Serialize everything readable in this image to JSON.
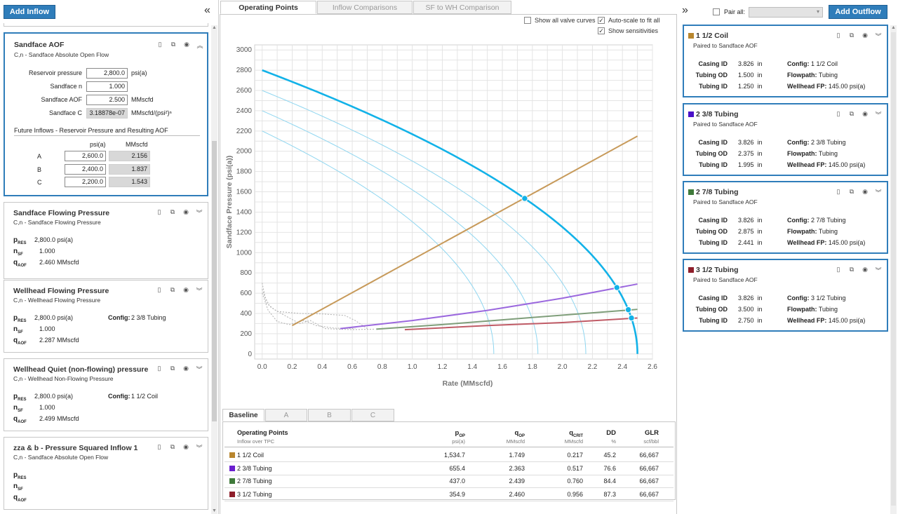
{
  "left": {
    "add_inflow": "Add Inflow",
    "collapse": "«",
    "cards": [
      {
        "title": "Sandface AOF",
        "subtitle": "C,n - Sandface Absolute Open Flow",
        "fields": [
          {
            "label": "Reservoir pressure",
            "value": "2,800.0",
            "unit": "psi(a)"
          },
          {
            "label": "Sandface n",
            "value": "1.000",
            "unit": ""
          },
          {
            "label": "Sandface AOF",
            "value": "2.500",
            "unit": "MMscfd"
          },
          {
            "label": "Sandface C",
            "value": "3.18878e-07",
            "unit": "MMscfd/(psi²)ⁿ"
          }
        ],
        "future_title": "Future Inflows - Reservoir Pressure and Resulting AOF",
        "future_headers": [
          "psi(a)",
          "MMscfd"
        ],
        "future_rows": [
          {
            "name": "A",
            "p": "2,600.0",
            "q": "2.156"
          },
          {
            "name": "B",
            "p": "2,400.0",
            "q": "1.837"
          },
          {
            "name": "C",
            "p": "2,200.0",
            "q": "1.543"
          }
        ]
      },
      {
        "title": "Sandface Flowing Pressure",
        "subtitle": "C,n - Sandface Flowing Pressure",
        "pres": "2,800.0",
        "pres_u": "psi(a)",
        "n": "1.000",
        "q": "2.460",
        "q_u": "MMscfd",
        "config_label": "",
        "config": ""
      },
      {
        "title": "Wellhead Flowing Pressure",
        "subtitle": "C,n - Wellhead Flowing Pressure",
        "pres": "2,800.0",
        "pres_u": "psi(a)",
        "n": "1.000",
        "q": "2.287",
        "q_u": "MMscfd",
        "config_label": "Config:",
        "config": "2 3/8 Tubing"
      },
      {
        "title": "Wellhead Quiet (non-flowing) pressure",
        "subtitle": "C,n - Wellhead Non-Flowing Pressure",
        "pres": "2,800.0",
        "pres_u": "psi(a)",
        "n": "1.000",
        "q": "2.499",
        "q_u": "MMscfd",
        "config_label": "Config:",
        "config": "1 1/2 Coil"
      },
      {
        "title": "zza & b - Pressure Squared Inflow 1",
        "subtitle": "C,n - Sandface Absolute Open Flow",
        "pres": "",
        "pres_u": "",
        "n": "",
        "q": "",
        "q_u": "",
        "config_label": "",
        "config": ""
      }
    ],
    "sym": {
      "p": "p",
      "p_sub": "RES",
      "n": "n",
      "n_sub": "SF",
      "q": "q",
      "q_sub": "AOF"
    }
  },
  "center": {
    "tabs": [
      "Operating Points",
      "Inflow Comparisons",
      "SF to WH Comparison"
    ],
    "checks": [
      {
        "label": "Show all valve curves",
        "checked": false
      },
      {
        "label": "Auto-scale to fit all",
        "checked": true
      },
      {
        "label": "Show sensitivities",
        "checked": true
      }
    ],
    "bottom_tabs": [
      "Baseline",
      "A",
      "B",
      "C"
    ],
    "table": {
      "h_title": "Operating Points",
      "h_sub": "Inflow over TPC",
      "cols": [
        {
          "main": "p",
          "sub": "OP",
          "unit": "psi(a)"
        },
        {
          "main": "q",
          "sub": "OP",
          "unit": "MMscfd"
        },
        {
          "main": "q",
          "sub": "CRIT",
          "unit": "MMscfd"
        },
        {
          "main": "DD",
          "sub": "",
          "unit": "%"
        },
        {
          "main": "GLR",
          "sub": "",
          "unit": "scf/bbl"
        }
      ],
      "rows": [
        {
          "name": "1 1/2 Coil",
          "color": "#b8862e",
          "v": [
            "1,534.7",
            "1.749",
            "0.217",
            "45.2",
            "66,667"
          ]
        },
        {
          "name": "2 3/8 Tubing",
          "color": "#6a1fcf",
          "v": [
            "655.4",
            "2.363",
            "0.517",
            "76.6",
            "66,667"
          ]
        },
        {
          "name": "2 7/8 Tubing",
          "color": "#3f7a3a",
          "v": [
            "437.0",
            "2.439",
            "0.760",
            "84.4",
            "66,667"
          ]
        },
        {
          "name": "3 1/2 Tubing",
          "color": "#8e1e2a",
          "v": [
            "354.9",
            "2.460",
            "0.956",
            "87.3",
            "66,667"
          ]
        }
      ]
    }
  },
  "chart_data": {
    "type": "line",
    "xlabel": "Rate (MMscfd)",
    "ylabel": "Sandface Pressure (psi(a))",
    "xlim": [
      -0.05,
      2.6
    ],
    "ylim": [
      -50,
      3050
    ],
    "xticks": [
      "0.0",
      "0.2",
      "0.4",
      "0.6",
      "0.8",
      "1.0",
      "1.2",
      "1.4",
      "1.6",
      "1.8",
      "2.0",
      "2.2",
      "2.4",
      "2.6"
    ],
    "yticks": [
      "0",
      "200",
      "400",
      "600",
      "800",
      "1000",
      "1200",
      "1400",
      "1600",
      "1800",
      "2000",
      "2200",
      "2400",
      "2600",
      "2800",
      "3000"
    ],
    "ipr": [
      {
        "pres": 2800,
        "aof": 2.5,
        "color": "#12b2e8",
        "width": 2.6
      },
      {
        "pres": 2600,
        "aof": 2.156,
        "color": "#8fd6f0",
        "width": 1
      },
      {
        "pres": 2400,
        "aof": 1.837,
        "color": "#8fd6f0",
        "width": 1
      },
      {
        "pres": 2200,
        "aof": 1.543,
        "color": "#8fd6f0",
        "width": 1
      }
    ],
    "series": [
      {
        "name": "1 1/2 Coil",
        "color": "#c79a5a",
        "x": [
          0.2,
          2.5
        ],
        "y": [
          280,
          2150
        ]
      },
      {
        "name": "2 3/8 Tubing",
        "color": "#9b68de",
        "x": [
          0.52,
          1.0,
          1.5,
          2.0,
          2.5
        ],
        "y": [
          250,
          330,
          430,
          550,
          690
        ]
      },
      {
        "name": "2 7/8 Tubing",
        "color": "#7f9e7a",
        "x": [
          0.76,
          1.2,
          1.8,
          2.5
        ],
        "y": [
          245,
          290,
          360,
          440
        ]
      },
      {
        "name": "3 1/2 Tubing",
        "color": "#c05b66",
        "x": [
          0.95,
          1.5,
          2.0,
          2.5
        ],
        "y": [
          240,
          280,
          310,
          355
        ]
      }
    ],
    "points": [
      {
        "x": 1.749,
        "y": 1534.7
      },
      {
        "x": 2.363,
        "y": 655.4
      },
      {
        "x": 2.439,
        "y": 437.0
      },
      {
        "x": 2.46,
        "y": 354.9
      }
    ]
  },
  "right": {
    "pair_label": "Pair all:",
    "add_outflow": "Add Outflow",
    "expand": "»",
    "cards": [
      {
        "title": "1 1/2 Coil",
        "color": "#b8862e",
        "paired": "Paired to Sandface AOF",
        "casing": "3.826",
        "tod": "1.500",
        "tid": "1.250",
        "config": "1 1/2 Coil",
        "flowpath": "Tubing",
        "whfp": "145.00 psi(a)"
      },
      {
        "title": "2 3/8 Tubing",
        "color": "#4a10c8",
        "paired": "Paired to Sandface AOF",
        "casing": "3.826",
        "tod": "2.375",
        "tid": "1.995",
        "config": "2 3/8 Tubing",
        "flowpath": "Tubing",
        "whfp": "145.00 psi(a)"
      },
      {
        "title": "2 7/8 Tubing",
        "color": "#3f7a3a",
        "paired": "Paired to Sandface AOF",
        "casing": "3.826",
        "tod": "2.875",
        "tid": "2.441",
        "config": "2 7/8 Tubing",
        "flowpath": "Tubing",
        "whfp": "145.00 psi(a)"
      },
      {
        "title": "3 1/2 Tubing",
        "color": "#8e1e2a",
        "paired": "Paired to Sandface AOF",
        "casing": "3.826",
        "tod": "3.500",
        "tid": "2.750",
        "config": "3 1/2 Tubing",
        "flowpath": "Tubing",
        "whfp": "145.00 psi(a)"
      }
    ],
    "labels": {
      "casing": "Casing ID",
      "tod": "Tubing OD",
      "tid": "Tubing ID",
      "config": "Config:",
      "flowpath": "Flowpath:",
      "whfp": "Wellhead FP:",
      "unit": "in"
    }
  }
}
